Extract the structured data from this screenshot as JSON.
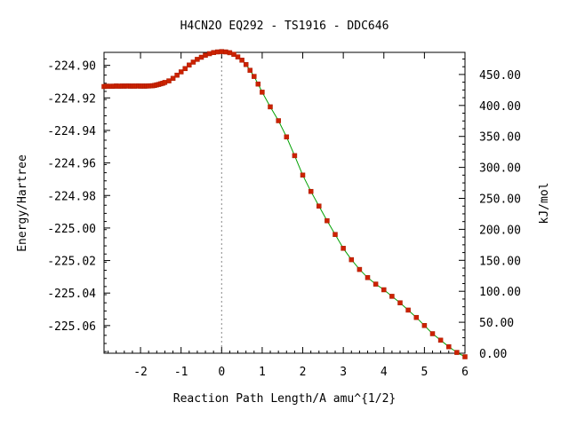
{
  "chart_data": {
    "type": "line",
    "title": "H4CN2O    EQ292 - TS1916 - DDC646",
    "xlabel": "Reaction Path Length/A amu^{1/2}",
    "ylabel": "Energy/Hartree",
    "y2label": "kJ/mol",
    "xlim": [
      -2.9,
      6.0
    ],
    "ylim": [
      -225.077,
      -224.892
    ],
    "y2lim": [
      0.0,
      485.7
    ],
    "grid": false,
    "legend": "none",
    "x_ticks": [
      {
        "value": -2,
        "label": "-2"
      },
      {
        "value": -1,
        "label": "-1"
      },
      {
        "value": 0,
        "label": "0"
      },
      {
        "value": 1,
        "label": "1"
      },
      {
        "value": 2,
        "label": "2"
      },
      {
        "value": 3,
        "label": "3"
      },
      {
        "value": 4,
        "label": "4"
      },
      {
        "value": 5,
        "label": "5"
      },
      {
        "value": 6,
        "label": "6"
      }
    ],
    "y_ticks": [
      {
        "value": -224.9,
        "label": "-224.90"
      },
      {
        "value": -224.92,
        "label": "-224.92"
      },
      {
        "value": -224.94,
        "label": "-224.94"
      },
      {
        "value": -224.96,
        "label": "-224.96"
      },
      {
        "value": -224.98,
        "label": "-224.98"
      },
      {
        "value": -225.0,
        "label": "-225.00"
      },
      {
        "value": -225.02,
        "label": "-225.02"
      },
      {
        "value": -225.04,
        "label": "-225.04"
      },
      {
        "value": -225.06,
        "label": "-225.06"
      }
    ],
    "y2_ticks": [
      {
        "value": 0,
        "label": "0.00"
      },
      {
        "value": 50,
        "label": "50.00"
      },
      {
        "value": 100,
        "label": "100.00"
      },
      {
        "value": 150,
        "label": "150.00"
      },
      {
        "value": 200,
        "label": "200.00"
      },
      {
        "value": 250,
        "label": "250.00"
      },
      {
        "value": 300,
        "label": "300.00"
      },
      {
        "value": 350,
        "label": "350.00"
      },
      {
        "value": 400,
        "label": "400.00"
      },
      {
        "value": 450,
        "label": "450.00"
      }
    ],
    "ts_x": 0,
    "colors": {
      "line": "#00a000",
      "marker": "#cc2200",
      "ts_line": "#888888",
      "axis": "#000000"
    },
    "series": [
      {
        "x": [
          -2.9,
          -2.85,
          -2.8,
          -2.75,
          -2.7,
          -2.65,
          -2.6,
          -2.55,
          -2.5,
          -2.45,
          -2.4,
          -2.35,
          -2.3,
          -2.25,
          -2.2,
          -2.15,
          -2.1,
          -2.05,
          -2.0,
          -1.95,
          -1.9,
          -1.85,
          -1.8,
          -1.75,
          -1.7,
          -1.65,
          -1.6,
          -1.55,
          -1.5,
          -1.45,
          -1.4,
          -1.3,
          -1.2,
          -1.1,
          -1.0,
          -0.9,
          -0.8,
          -0.7,
          -0.6,
          -0.5,
          -0.4,
          -0.3,
          -0.2,
          -0.1,
          0.0,
          0.1,
          0.2,
          0.3,
          0.4,
          0.5,
          0.6,
          0.7,
          0.8,
          0.9,
          1.0,
          1.2,
          1.4,
          1.6,
          1.8,
          2.0,
          2.2,
          2.4,
          2.6,
          2.8,
          3.0,
          3.2,
          3.4,
          3.6,
          3.8,
          4.0,
          4.2,
          4.4,
          4.6,
          4.8,
          5.0,
          5.2,
          5.4,
          5.6,
          5.8,
          6.0
        ],
        "y": [
          -224.913,
          -224.9128,
          -224.9129,
          -224.9128,
          -224.9129,
          -224.9128,
          -224.9127,
          -224.9128,
          -224.9128,
          -224.9127,
          -224.9128,
          -224.9127,
          -224.9127,
          -224.9128,
          -224.9127,
          -224.9128,
          -224.9127,
          -224.9127,
          -224.9128,
          -224.9127,
          -224.9128,
          -224.9127,
          -224.9127,
          -224.9126,
          -224.9125,
          -224.9123,
          -224.912,
          -224.9117,
          -224.9113,
          -224.911,
          -224.9105,
          -224.9095,
          -224.908,
          -224.906,
          -224.904,
          -224.902,
          -224.8998,
          -224.898,
          -224.8963,
          -224.895,
          -224.8938,
          -224.8928,
          -224.8921,
          -224.8917,
          -224.8915,
          -224.8917,
          -224.8922,
          -224.8932,
          -224.8948,
          -224.8968,
          -224.8995,
          -224.903,
          -224.9068,
          -224.9115,
          -224.9165,
          -224.9255,
          -224.934,
          -224.944,
          -224.9555,
          -224.9675,
          -224.9775,
          -224.9865,
          -224.9955,
          -225.004,
          -225.0125,
          -225.0195,
          -225.0255,
          -225.0305,
          -225.0345,
          -225.038,
          -225.042,
          -225.046,
          -225.0505,
          -225.055,
          -225.06,
          -225.065,
          -225.069,
          -225.073,
          -225.0765,
          -225.0792
        ]
      }
    ]
  }
}
